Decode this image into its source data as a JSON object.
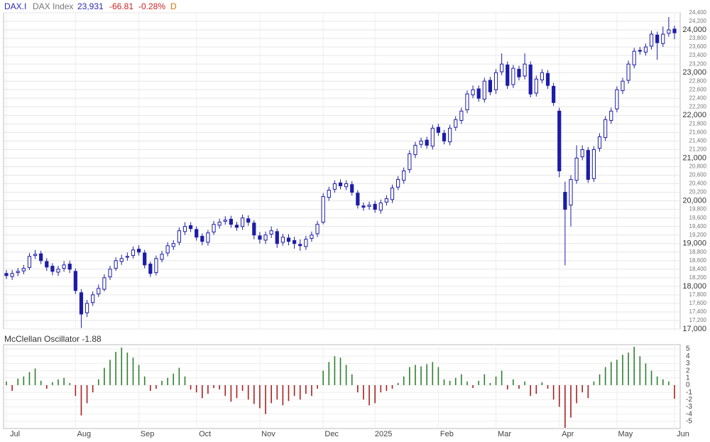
{
  "chart_data": [
    {
      "type": "candlestick",
      "symbol": "DAX.I",
      "name": "DAX Index",
      "last": "23,931",
      "change": "-66.81",
      "change_pct": "-0.28%",
      "interval": "D",
      "color": "#1c1ca8",
      "grid": true,
      "categories": [
        "Jul",
        null,
        null,
        null,
        null,
        null,
        null,
        null,
        null,
        null,
        null,
        null,
        "Aug",
        null,
        null,
        null,
        null,
        null,
        null,
        null,
        null,
        null,
        null,
        "Sep",
        null,
        null,
        null,
        null,
        null,
        null,
        null,
        null,
        null,
        "Oct",
        null,
        null,
        null,
        null,
        null,
        null,
        null,
        null,
        null,
        null,
        "Nov",
        null,
        null,
        null,
        null,
        null,
        null,
        null,
        null,
        null,
        null,
        "Dec",
        null,
        null,
        null,
        null,
        null,
        null,
        null,
        null,
        "2025",
        null,
        null,
        null,
        null,
        null,
        null,
        null,
        null,
        null,
        null,
        "Feb",
        null,
        null,
        null,
        null,
        null,
        null,
        null,
        null,
        null,
        "Mar",
        null,
        null,
        null,
        null,
        null,
        null,
        null,
        null,
        null,
        null,
        "Apr",
        null,
        null,
        null,
        null,
        null,
        null,
        null,
        null,
        null,
        "May",
        null,
        null,
        null,
        null,
        null,
        null,
        null,
        null,
        null,
        "Jun"
      ],
      "open": [
        18300,
        18230,
        18320,
        18360,
        18440,
        18720,
        18760,
        18580,
        18470,
        18330,
        18420,
        18520,
        18350,
        17850,
        17380,
        17620,
        17820,
        17930,
        18220,
        18420,
        18580,
        18680,
        18720,
        18870,
        18780,
        18520,
        18320,
        18630,
        18780,
        18930,
        19030,
        19280,
        19420,
        19330,
        19170,
        19030,
        19270,
        19430,
        19520,
        19570,
        19430,
        19400,
        19580,
        19480,
        19180,
        19080,
        19220,
        19280,
        19030,
        19130,
        19070,
        18980,
        18930,
        19120,
        19230,
        19500,
        20080,
        20270,
        20420,
        20330,
        20380,
        20180,
        19880,
        19870,
        19920,
        19780,
        19970,
        20030,
        20320,
        20480,
        20730,
        21080,
        21320,
        21420,
        21280,
        21720,
        21580,
        21380,
        21720,
        21880,
        22130,
        22480,
        22620,
        22380,
        22820,
        22600,
        23020,
        23180,
        22720,
        23080,
        22920,
        23180,
        22520,
        22830,
        22980,
        22680,
        22100,
        20200,
        19900,
        20480,
        21030,
        21180,
        20520,
        21230,
        21480,
        21880,
        22150,
        22580,
        22820,
        23180,
        23520,
        23480,
        23620,
        23880,
        23680,
        23920,
        24020
      ],
      "high": [
        18380,
        18380,
        18430,
        18500,
        18780,
        18850,
        18830,
        18660,
        18540,
        18480,
        18590,
        18600,
        18420,
        17930,
        17680,
        17880,
        18040,
        18280,
        18480,
        18680,
        18740,
        18790,
        18930,
        18960,
        18850,
        18580,
        18720,
        18830,
        19030,
        19080,
        19380,
        19500,
        19500,
        19400,
        19240,
        19320,
        19530,
        19580,
        19640,
        19650,
        19510,
        19680,
        19660,
        19550,
        19270,
        19280,
        19400,
        19350,
        19230,
        19220,
        19160,
        19100,
        19180,
        19280,
        19530,
        20180,
        20330,
        20480,
        20500,
        20480,
        20460,
        20250,
        19960,
        19980,
        20000,
        20030,
        20130,
        20380,
        20580,
        20780,
        21180,
        21380,
        21480,
        21500,
        21780,
        21800,
        21660,
        21780,
        21980,
        22180,
        22580,
        22700,
        22700,
        22880,
        22900,
        23080,
        23450,
        23260,
        23180,
        23160,
        23450,
        23260,
        22930,
        23080,
        23060,
        22760,
        22180,
        20450,
        20600,
        21300,
        21300,
        21260,
        21280,
        21580,
        21980,
        22180,
        22680,
        22880,
        23280,
        23580,
        23600,
        23680,
        23980,
        23960,
        24080,
        24300,
        24100
      ],
      "low": [
        18170,
        18150,
        18240,
        18280,
        18380,
        18640,
        18520,
        18360,
        18260,
        18240,
        18340,
        18310,
        17820,
        17025,
        17280,
        17540,
        17750,
        17880,
        18150,
        18360,
        18500,
        18600,
        18650,
        18720,
        18420,
        18220,
        18250,
        18560,
        18700,
        18850,
        18960,
        19200,
        19270,
        19070,
        18960,
        18950,
        19200,
        19350,
        19440,
        19370,
        19300,
        19320,
        19420,
        19100,
        19000,
        18990,
        19130,
        18900,
        18950,
        18960,
        18880,
        18830,
        18850,
        19040,
        19150,
        19450,
        20000,
        20190,
        20270,
        20250,
        20120,
        19820,
        19770,
        19790,
        19720,
        19700,
        19890,
        19950,
        20250,
        20400,
        20650,
        21000,
        21240,
        21220,
        21200,
        21520,
        21320,
        21300,
        21640,
        21800,
        22050,
        22400,
        22320,
        22300,
        22470,
        22500,
        22940,
        22620,
        22640,
        22820,
        22840,
        22420,
        22440,
        22750,
        22620,
        22220,
        20550,
        18490,
        19400,
        20400,
        20950,
        20420,
        20440,
        21150,
        21400,
        21800,
        22070,
        22500,
        22740,
        23100,
        23420,
        23400,
        23540,
        23300,
        23600,
        23840,
        23780
      ],
      "close": [
        18250,
        18300,
        18350,
        18420,
        18700,
        18750,
        18600,
        18450,
        18350,
        18400,
        18500,
        18400,
        17900,
        17350,
        17600,
        17800,
        17950,
        18200,
        18400,
        18600,
        18650,
        18700,
        18850,
        18800,
        18500,
        18300,
        18650,
        18750,
        18950,
        19000,
        19300,
        19400,
        19350,
        19150,
        19050,
        19250,
        19450,
        19500,
        19550,
        19450,
        19380,
        19600,
        19500,
        19200,
        19100,
        19200,
        19300,
        19000,
        19150,
        19050,
        19000,
        18950,
        19100,
        19200,
        19450,
        20100,
        20250,
        20400,
        20350,
        20400,
        20200,
        19900,
        19850,
        19900,
        19800,
        19950,
        20050,
        20300,
        20500,
        20700,
        21100,
        21300,
        21400,
        21300,
        21700,
        21600,
        21400,
        21700,
        21900,
        22100,
        22500,
        22600,
        22400,
        22800,
        22550,
        23000,
        23200,
        22700,
        23100,
        22900,
        23200,
        22500,
        22850,
        23000,
        22700,
        22300,
        20700,
        19800,
        20500,
        21000,
        21200,
        20500,
        21200,
        21500,
        21900,
        22100,
        22600,
        22800,
        23200,
        23500,
        23500,
        23600,
        23900,
        23700,
        23900,
        24000,
        23931
      ],
      "ylim": [
        17000,
        24400
      ],
      "yticks": [
        {
          "value": 17000,
          "label": "17,000"
        },
        {
          "value": 17200,
          "label": "17,200"
        },
        {
          "value": 17400,
          "label": "17,400"
        },
        {
          "value": 17600,
          "label": "17,600"
        },
        {
          "value": 17800,
          "label": "17,800"
        },
        {
          "value": 18000,
          "label": "18,000"
        },
        {
          "value": 18200,
          "label": "18,200"
        },
        {
          "value": 18400,
          "label": "18,400"
        },
        {
          "value": 18600,
          "label": "18,600"
        },
        {
          "value": 18800,
          "label": "18,800"
        },
        {
          "value": 19000,
          "label": "19,000"
        },
        {
          "value": 19200,
          "label": "19,200"
        },
        {
          "value": 19400,
          "label": "19,400"
        },
        {
          "value": 19600,
          "label": "19,600"
        },
        {
          "value": 19800,
          "label": "19,800"
        },
        {
          "value": 20000,
          "label": "20,000"
        },
        {
          "value": 20200,
          "label": "20,200"
        },
        {
          "value": 20400,
          "label": "20,400"
        },
        {
          "value": 20600,
          "label": "20,600"
        },
        {
          "value": 20800,
          "label": "20,800"
        },
        {
          "value": 21000,
          "label": "21,000"
        },
        {
          "value": 21200,
          "label": "21,200"
        },
        {
          "value": 21400,
          "label": "21,400"
        },
        {
          "value": 21600,
          "label": "21,600"
        },
        {
          "value": 21800,
          "label": "21,800"
        },
        {
          "value": 22000,
          "label": "22,000"
        },
        {
          "value": 22200,
          "label": "22,200"
        },
        {
          "value": 22400,
          "label": "22,400"
        },
        {
          "value": 22600,
          "label": "22,600"
        },
        {
          "value": 22800,
          "label": "22,800"
        },
        {
          "value": 23000,
          "label": "23,000"
        },
        {
          "value": 23200,
          "label": "23,200"
        },
        {
          "value": 23400,
          "label": "23,400"
        },
        {
          "value": 23600,
          "label": "23,600"
        },
        {
          "value": 23800,
          "label": "23,800"
        },
        {
          "value": 24000,
          "label": "24,000"
        },
        {
          "value": 24200,
          "label": "24,200"
        },
        {
          "value": 24400,
          "label": "24,400"
        }
      ]
    },
    {
      "type": "bar",
      "title": "McClellan Oscillator -1.88",
      "positive_color": "#2f7f2f",
      "negative_color": "#a82020",
      "grid": true,
      "values": [
        0.5,
        -0.8,
        0.9,
        1.2,
        1.8,
        2.3,
        0.6,
        -0.5,
        0.4,
        0.8,
        1.0,
        0.3,
        -1.5,
        -4.2,
        -2.5,
        -1.0,
        0.8,
        2.4,
        3.5,
        4.6,
        5.2,
        4.5,
        3.8,
        2.8,
        1.2,
        -0.8,
        -0.5,
        0.6,
        1.0,
        1.6,
        2.4,
        1.2,
        -0.6,
        -1.0,
        -1.8,
        -1.2,
        -0.4,
        -0.6,
        -1.5,
        -2.3,
        -1.8,
        -0.8,
        -2.0,
        -2.6,
        -3.2,
        -4.0,
        -2.5,
        -2.0,
        -2.8,
        -2.2,
        -1.5,
        -2.0,
        -1.2,
        -1.5,
        -0.5,
        2.0,
        3.2,
        4.0,
        3.8,
        2.8,
        1.5,
        -1.0,
        -2.0,
        -2.8,
        -2.5,
        -1.0,
        -0.8,
        -0.5,
        0.3,
        1.2,
        2.5,
        2.8,
        2.6,
        2.9,
        3.2,
        2.5,
        0.8,
        0.6,
        1.0,
        1.5,
        0.5,
        -0.4,
        0.6,
        1.5,
        0.3,
        1.2,
        2.0,
        -0.6,
        0.8,
        -0.5,
        0.5,
        -1.5,
        -1.2,
        0.4,
        -0.5,
        -2.0,
        -3.0,
        -5.9,
        -4.5,
        -2.5,
        -1.0,
        -1.8,
        0.5,
        1.5,
        2.5,
        3.2,
        3.5,
        4.2,
        4.5,
        5.3,
        4.0,
        3.0,
        2.0,
        1.2,
        0.8,
        0.5,
        -1.88
      ],
      "ylim": [
        -6,
        5.6
      ],
      "yticks": [
        -5,
        -4,
        -3,
        -2,
        -1,
        0,
        1,
        2,
        3,
        4,
        5
      ]
    }
  ]
}
